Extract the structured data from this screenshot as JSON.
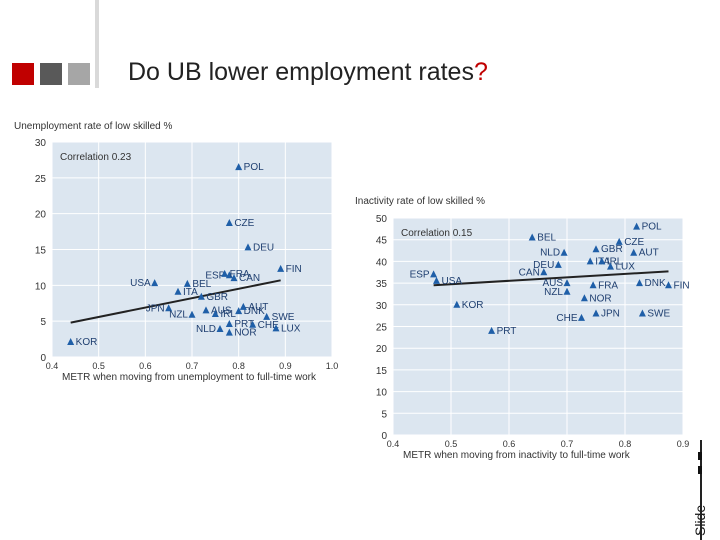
{
  "slide": {
    "title": "Do UB lower employment rates",
    "title_mark": "?",
    "slide_label": "Slide",
    "accent_colors": [
      "#c00000",
      "#595959",
      "#a6a6a6"
    ]
  },
  "chart_data": [
    {
      "type": "scatter",
      "title": "Unemployment rate of low skilled %",
      "xlabel": "METR when moving from unemployment to full-time work",
      "ylabel": "Unemployment rate of low skilled %",
      "annotation": "Correlation 0.23",
      "xlim": [
        0.4,
        1.0
      ],
      "ylim": [
        0,
        30
      ],
      "xticks": [
        "0.4",
        "0.5",
        "0.6",
        "0.7",
        "0.8",
        "0.9",
        "1.0"
      ],
      "yticks": [
        "0",
        "5",
        "10",
        "15",
        "20",
        "25",
        "30"
      ],
      "points": [
        {
          "label": "KOR",
          "x": 0.44,
          "y": 2.1
        },
        {
          "label": "USA",
          "x": 0.62,
          "y": 10.3
        },
        {
          "label": "JPN",
          "x": 0.65,
          "y": 6.8
        },
        {
          "label": "ITA",
          "x": 0.67,
          "y": 9.1
        },
        {
          "label": "BEL",
          "x": 0.69,
          "y": 10.2
        },
        {
          "label": "NZL",
          "x": 0.7,
          "y": 5.9
        },
        {
          "label": "ESP",
          "x": 0.78,
          "y": 11.4
        },
        {
          "label": "AUS",
          "x": 0.73,
          "y": 6.5
        },
        {
          "label": "IRL",
          "x": 0.75,
          "y": 6.0
        },
        {
          "label": "GBR",
          "x": 0.72,
          "y": 8.4
        },
        {
          "label": "NLD",
          "x": 0.76,
          "y": 3.9
        },
        {
          "label": "NOR",
          "x": 0.78,
          "y": 3.4
        },
        {
          "label": "PRT",
          "x": 0.78,
          "y": 4.6
        },
        {
          "label": "CHE",
          "x": 0.83,
          "y": 4.5
        },
        {
          "label": "DNK",
          "x": 0.8,
          "y": 6.4
        },
        {
          "label": "AUT",
          "x": 0.81,
          "y": 7.0
        },
        {
          "label": "CAN",
          "x": 0.79,
          "y": 11.0
        },
        {
          "label": "FRA",
          "x": 0.77,
          "y": 11.6
        },
        {
          "label": "SWE",
          "x": 0.86,
          "y": 5.6
        },
        {
          "label": "LUX",
          "x": 0.88,
          "y": 4.0
        },
        {
          "label": "FIN",
          "x": 0.89,
          "y": 12.3
        },
        {
          "label": "DEU",
          "x": 0.82,
          "y": 15.3
        },
        {
          "label": "CZE",
          "x": 0.78,
          "y": 18.7
        },
        {
          "label": "POL",
          "x": 0.8,
          "y": 26.5
        }
      ],
      "trendline": {
        "x": [
          0.44,
          0.89
        ],
        "y": [
          4.8,
          10.7
        ]
      }
    },
    {
      "type": "scatter",
      "title": "Inactivity rate of low skilled %",
      "xlabel": "METR when moving from inactivity to full-time work",
      "ylabel": "Inactivity rate of low skilled %",
      "annotation": "Correlation 0.15",
      "xlim": [
        0.4,
        0.9
      ],
      "ylim": [
        0,
        50
      ],
      "xticks": [
        "0.4",
        "0.5",
        "0.6",
        "0.7",
        "0.8",
        "0.9"
      ],
      "yticks": [
        "0",
        "5",
        "10",
        "15",
        "20",
        "25",
        "30",
        "35",
        "40",
        "45",
        "50"
      ],
      "points": [
        {
          "label": "ESP",
          "x": 0.47,
          "y": 37.0
        },
        {
          "label": "USA",
          "x": 0.475,
          "y": 35.5
        },
        {
          "label": "KOR",
          "x": 0.51,
          "y": 30.0
        },
        {
          "label": "PRT",
          "x": 0.57,
          "y": 24.0
        },
        {
          "label": "BEL",
          "x": 0.64,
          "y": 45.5
        },
        {
          "label": "CAN",
          "x": 0.66,
          "y": 37.5
        },
        {
          "label": "DEU",
          "x": 0.685,
          "y": 39.2
        },
        {
          "label": "NLD",
          "x": 0.695,
          "y": 42.0
        },
        {
          "label": "AUS",
          "x": 0.7,
          "y": 35.0
        },
        {
          "label": "NZL",
          "x": 0.7,
          "y": 33.0
        },
        {
          "label": "CHE",
          "x": 0.725,
          "y": 27.0
        },
        {
          "label": "NOR",
          "x": 0.73,
          "y": 31.5
        },
        {
          "label": "ITA",
          "x": 0.74,
          "y": 40.0
        },
        {
          "label": "GBR",
          "x": 0.75,
          "y": 42.8
        },
        {
          "label": "IRL",
          "x": 0.76,
          "y": 40.0
        },
        {
          "label": "FRA",
          "x": 0.745,
          "y": 34.5
        },
        {
          "label": "JPN",
          "x": 0.75,
          "y": 28.0
        },
        {
          "label": "LUX",
          "x": 0.775,
          "y": 38.8
        },
        {
          "label": "CZE",
          "x": 0.79,
          "y": 44.5
        },
        {
          "label": "AUT",
          "x": 0.815,
          "y": 42.0
        },
        {
          "label": "POL",
          "x": 0.82,
          "y": 48.0
        },
        {
          "label": "DNK",
          "x": 0.825,
          "y": 35.0
        },
        {
          "label": "SWE",
          "x": 0.83,
          "y": 28.0
        },
        {
          "label": "FIN",
          "x": 0.875,
          "y": 34.5
        }
      ],
      "trendline": {
        "x": [
          0.47,
          0.875
        ],
        "y": [
          34.5,
          37.7
        ]
      }
    }
  ]
}
